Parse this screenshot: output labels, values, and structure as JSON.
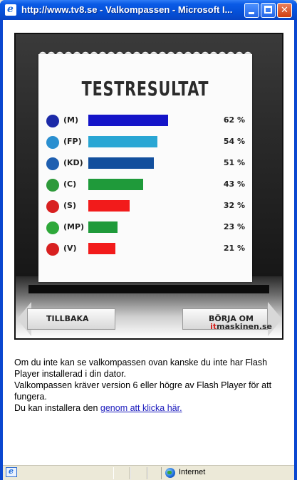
{
  "window": {
    "title": "http://www.tv8.se - Valkompassen - Microsoft I...",
    "colors": {
      "titlebar": "#0a5be6",
      "close": "#cf3d10"
    }
  },
  "flash": {
    "title": "TESTRESULTAT",
    "back_label": "TILLBAKA",
    "restart_label": "BÖRJA OM",
    "logo_prefix": "it",
    "logo_suffix": "maskinen.se"
  },
  "chart_data": {
    "type": "bar",
    "categories": [
      "(M)",
      "(FP)",
      "(KD)",
      "(C)",
      "(S)",
      "(MP)",
      "(V)"
    ],
    "values": [
      62,
      54,
      51,
      43,
      32,
      23,
      21
    ],
    "labels": [
      "62 %",
      "54 %",
      "51 %",
      "43 %",
      "32 %",
      "23 %",
      "21 %"
    ],
    "colors": [
      "#1414c8",
      "#29a6d4",
      "#124f9d",
      "#1f9a3a",
      "#f21b1b",
      "#1f9a3a",
      "#f21b1b"
    ],
    "icon_colors": [
      "#1c2aa8",
      "#2a8fd0",
      "#1f5fb0",
      "#2e9a3a",
      "#d82020",
      "#2ea83a",
      "#d82020"
    ],
    "xlim": [
      0,
      100
    ]
  },
  "info": {
    "line1": "Om du inte kan se valkompassen ovan kanske du inte har Flash Player installerad i din dator.",
    "line2": "Valkompassen kräver version 6 eller högre av Flash Player för att fungera.",
    "line3_prefix": "Du kan installera den ",
    "link_text": "genom att klicka här."
  },
  "statusbar": {
    "zone": "Internet"
  }
}
